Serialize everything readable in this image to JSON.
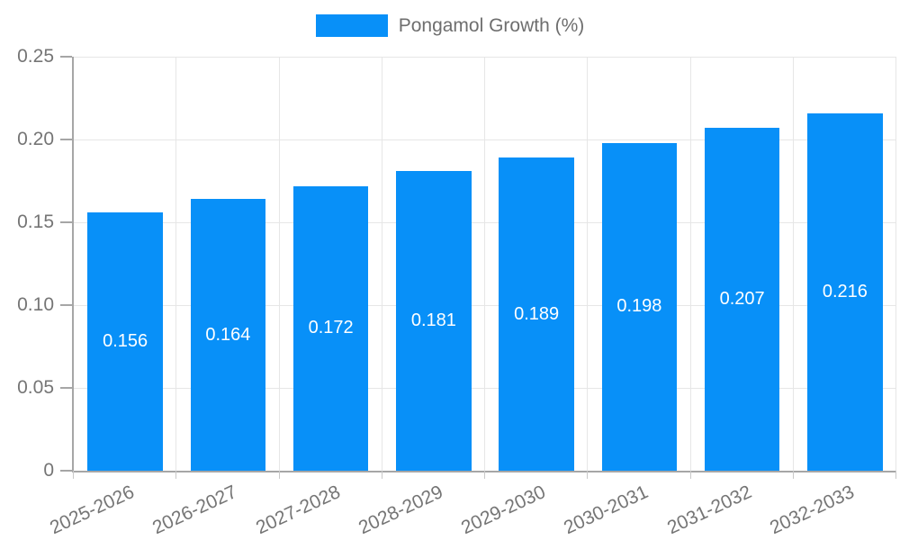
{
  "chart_data": {
    "type": "bar",
    "title": "Pongamol Growth (%)",
    "legend_entries": [
      "Pongamol Growth (%)"
    ],
    "legend_position": "top",
    "categories": [
      "2025-2026",
      "2026-2027",
      "2027-2028",
      "2028-2029",
      "2029-2030",
      "2030-2031",
      "2031-2032",
      "2032-2033"
    ],
    "series": [
      {
        "name": "Pongamol Growth (%)",
        "values": [
          0.156,
          0.164,
          0.172,
          0.181,
          0.189,
          0.198,
          0.207,
          0.216
        ]
      }
    ],
    "value_labels": [
      "0.156",
      "0.164",
      "0.172",
      "0.181",
      "0.189",
      "0.198",
      "0.207",
      "0.216"
    ],
    "xlabel": "",
    "ylabel": "",
    "ylim": [
      0,
      0.25
    ],
    "yticks": [
      0,
      0.05,
      0.1,
      0.15,
      0.2,
      0.25
    ],
    "ytick_labels": [
      "0",
      "0.05",
      "0.10",
      "0.15",
      "0.20",
      "0.25"
    ],
    "grid": true,
    "x_label_rotation_deg": -25,
    "colors": {
      "bar": "#0890F8",
      "grid": "#e6e6e6",
      "axis": "#a6a6a6",
      "tick_text": "#757575",
      "legend_text": "#6e6e6e",
      "bar_label": "#ffffff",
      "background": "#ffffff"
    }
  }
}
